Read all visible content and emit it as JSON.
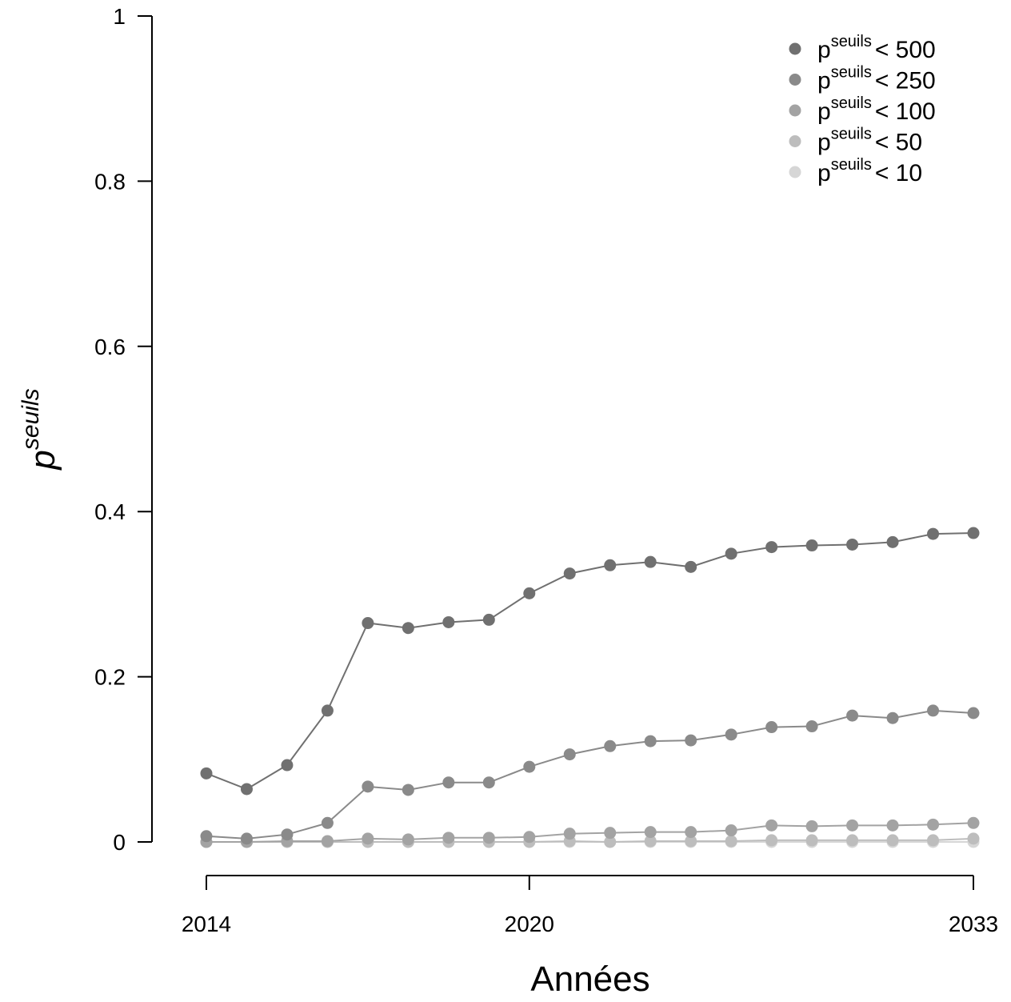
{
  "chart_data": {
    "type": "line",
    "title": "",
    "xlabel": "Années",
    "ylabel": {
      "base": "p",
      "sup": "seuils"
    },
    "x_tick_labels": [
      "2014",
      "2020",
      "2033"
    ],
    "y_tick_labels": [
      "0",
      "0.2",
      "0.4",
      "0.6",
      "0.8",
      "1"
    ],
    "ylim": [
      0,
      1
    ],
    "legend_position": "top-right",
    "x": [
      "1",
      "2",
      "3",
      "4",
      "5",
      "6",
      "7",
      "8",
      "9",
      "10",
      "11",
      "12",
      "13",
      "14",
      "15",
      "16",
      "17",
      "18",
      "19",
      "20"
    ],
    "series": [
      {
        "name": "p^seuils < 500",
        "legend": {
          "base": "p",
          "sup": "seuils",
          "rest": "< 500"
        },
        "color": "#707070",
        "values": [
          0.083,
          0.064,
          0.093,
          0.159,
          0.265,
          0.259,
          0.266,
          0.269,
          0.301,
          0.325,
          0.335,
          0.339,
          0.333,
          0.349,
          0.357,
          0.359,
          0.36,
          0.363,
          0.373,
          0.374
        ]
      },
      {
        "name": "p^seuils < 250",
        "legend": {
          "base": "p",
          "sup": "seuils",
          "rest": "< 250"
        },
        "color": "#8a8a8a",
        "values": [
          0.007,
          0.004,
          0.009,
          0.023,
          0.067,
          0.063,
          0.072,
          0.072,
          0.091,
          0.106,
          0.116,
          0.122,
          0.123,
          0.13,
          0.139,
          0.14,
          0.153,
          0.15,
          0.159,
          0.156
        ]
      },
      {
        "name": "p^seuils < 100",
        "legend": {
          "base": "p",
          "sup": "seuils",
          "rest": "< 100"
        },
        "color": "#a3a3a3",
        "values": [
          0.0,
          0.0,
          0.001,
          0.001,
          0.004,
          0.003,
          0.005,
          0.005,
          0.006,
          0.01,
          0.011,
          0.012,
          0.012,
          0.014,
          0.02,
          0.019,
          0.02,
          0.02,
          0.021,
          0.023
        ]
      },
      {
        "name": "p^seuils < 50",
        "legend": {
          "base": "p",
          "sup": "seuils",
          "rest": "< 50"
        },
        "color": "#bdbdbd",
        "values": [
          0.0,
          0.0,
          0.0,
          0.0,
          0.0,
          0.0,
          0.0,
          0.0,
          0.0,
          0.001,
          0.0,
          0.001,
          0.001,
          0.001,
          0.002,
          0.002,
          0.002,
          0.002,
          0.002,
          0.004
        ]
      },
      {
        "name": "p^seuils < 10",
        "legend": {
          "base": "p",
          "sup": "seuils",
          "rest": "< 10"
        },
        "color": "#d6d6d6",
        "values": [
          0,
          0,
          0,
          0,
          0,
          0,
          0,
          0,
          0,
          0,
          0,
          0,
          0,
          0,
          0,
          0,
          0,
          0,
          0,
          0
        ]
      }
    ]
  }
}
